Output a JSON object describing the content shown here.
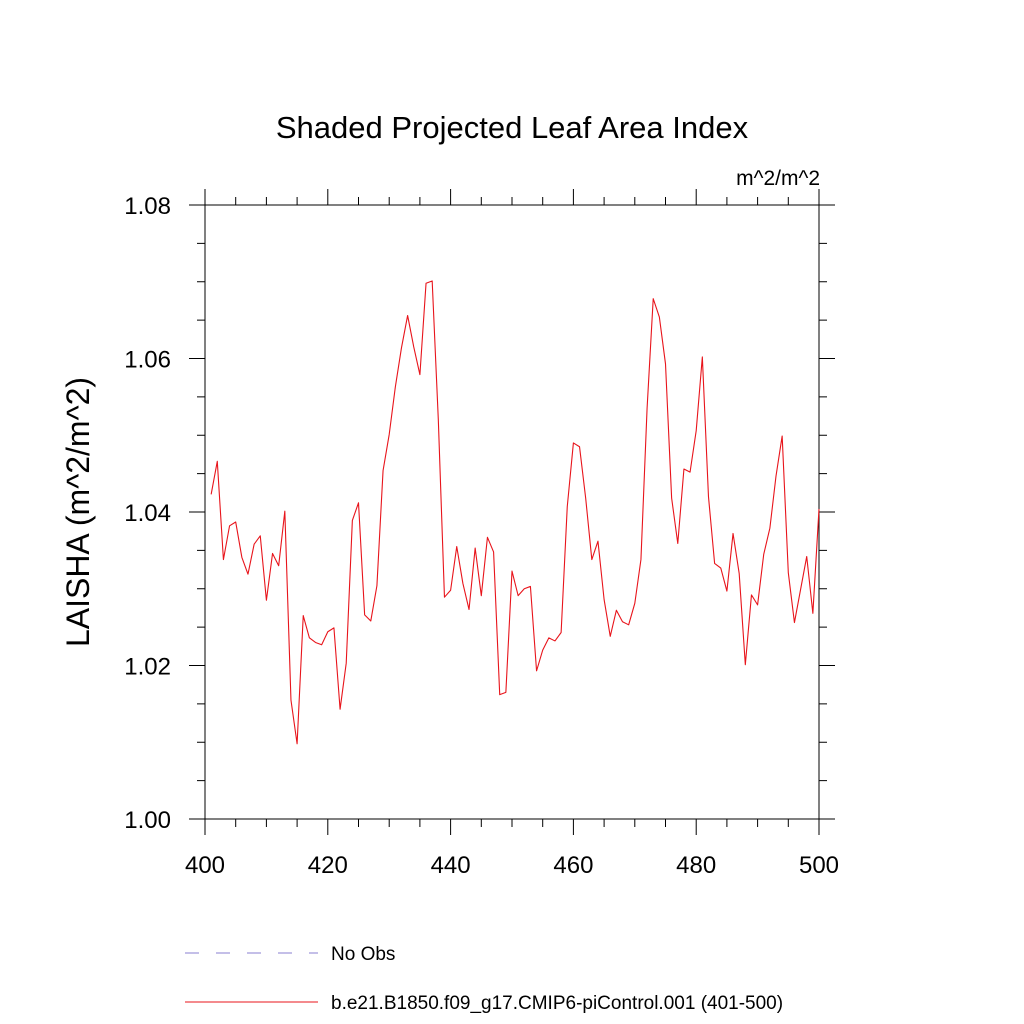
{
  "chart_data": {
    "type": "line",
    "title": "Shaded Projected Leaf Area Index",
    "units": "m^2/m^2",
    "xlabel": "",
    "ylabel": "LAISHA  (m^2/m^2)",
    "xlim": [
      400,
      500
    ],
    "ylim": [
      1.0,
      1.08
    ],
    "x_ticks": [
      400,
      420,
      440,
      460,
      480,
      500
    ],
    "x_tick_labels": [
      "400",
      "420",
      "440",
      "460",
      "480",
      "500"
    ],
    "y_ticks": [
      1.0,
      1.02,
      1.04,
      1.06,
      1.08
    ],
    "y_tick_labels": [
      "1.00",
      "1.02",
      "1.04",
      "1.06",
      "1.08"
    ],
    "legend": [
      {
        "name": "No Obs",
        "style": "dashed",
        "color": "#8a7fd0"
      },
      {
        "name": "b.e21.B1850.f09_g17.CMIP6-piControl.001 (401-500)",
        "style": "solid",
        "color": "#e8141b"
      }
    ],
    "series": [
      {
        "name": "b.e21.B1850.f09_g17.CMIP6-piControl.001 (401-500)",
        "color": "#e8141b",
        "x": [
          401,
          402,
          403,
          404,
          405,
          406,
          407,
          408,
          409,
          410,
          411,
          412,
          413,
          414,
          415,
          416,
          417,
          418,
          419,
          420,
          421,
          422,
          423,
          424,
          425,
          426,
          427,
          428,
          429,
          430,
          431,
          432,
          433,
          434,
          435,
          436,
          437,
          438,
          439,
          440,
          441,
          442,
          443,
          444,
          445,
          446,
          447,
          448,
          449,
          450,
          451,
          452,
          453,
          454,
          455,
          456,
          457,
          458,
          459,
          460,
          461,
          462,
          463,
          464,
          465,
          466,
          467,
          468,
          469,
          470,
          471,
          472,
          473,
          474,
          475,
          476,
          477,
          478,
          479,
          480,
          481,
          482,
          483,
          484,
          485,
          486,
          487,
          488,
          489,
          490,
          491,
          492,
          493,
          494,
          495,
          496,
          497,
          498,
          499,
          500
        ],
        "values": [
          1.0423,
          1.0466,
          1.0338,
          1.0382,
          1.0387,
          1.0341,
          1.0319,
          1.0358,
          1.0369,
          1.0285,
          1.0346,
          1.033,
          1.0401,
          1.0155,
          1.0098,
          1.0265,
          1.0236,
          1.023,
          1.0227,
          1.0244,
          1.0249,
          1.0143,
          1.0203,
          1.0389,
          1.0412,
          1.0266,
          1.0258,
          1.0304,
          1.0454,
          1.0501,
          1.0563,
          1.0614,
          1.0656,
          1.0615,
          1.0579,
          1.0698,
          1.0701,
          1.052,
          1.0289,
          1.0298,
          1.0355,
          1.0307,
          1.0273,
          1.0353,
          1.0291,
          1.0367,
          1.0348,
          1.0162,
          1.0165,
          1.0323,
          1.0291,
          1.03,
          1.0303,
          1.0193,
          1.022,
          1.0236,
          1.0232,
          1.0243,
          1.0407,
          1.049,
          1.0485,
          1.0418,
          1.0338,
          1.0362,
          1.0286,
          1.0238,
          1.0272,
          1.0257,
          1.0253,
          1.0281,
          1.0338,
          1.0535,
          1.0678,
          1.0654,
          1.0593,
          1.0418,
          1.0359,
          1.0456,
          1.0452,
          1.0506,
          1.0602,
          1.042,
          1.0333,
          1.0327,
          1.0297,
          1.0372,
          1.032,
          1.0201,
          1.0292,
          1.0279,
          1.0345,
          1.0379,
          1.0447,
          1.0499,
          1.0321,
          1.0256,
          1.0299,
          1.0342,
          1.0268,
          1.0404
        ]
      }
    ]
  }
}
